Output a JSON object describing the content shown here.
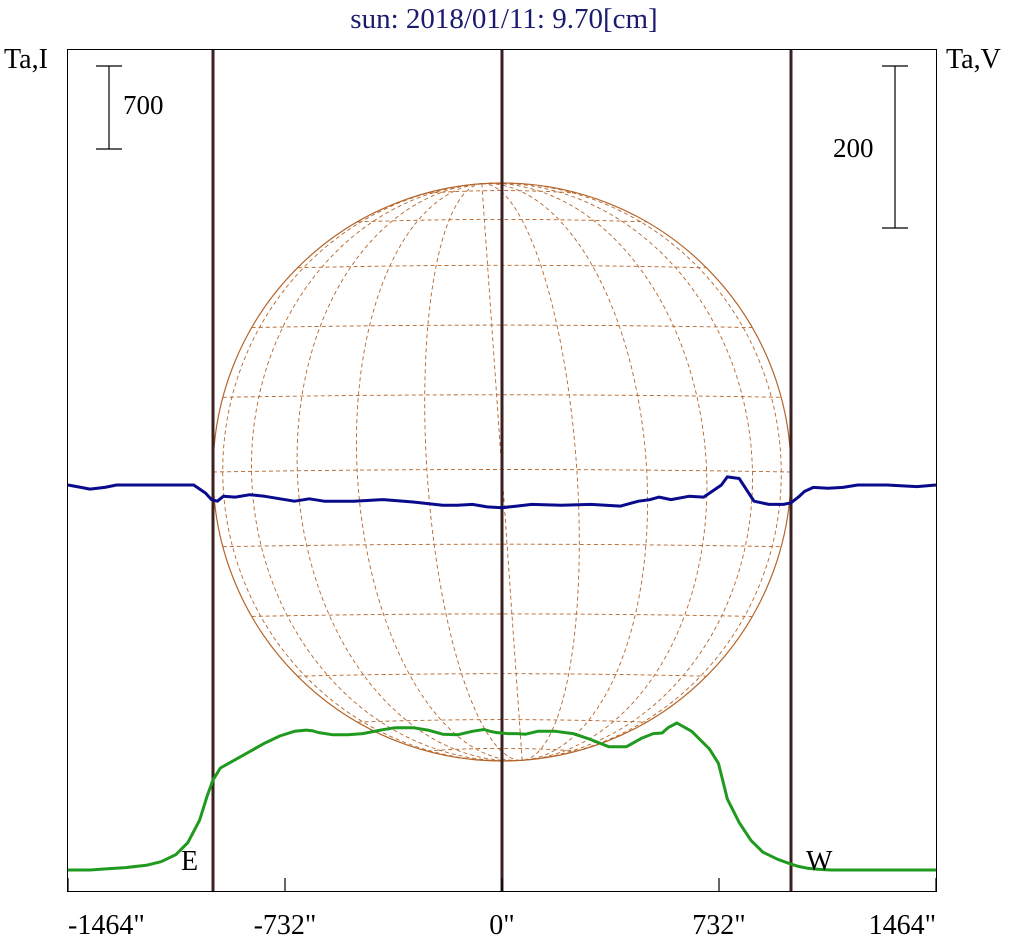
{
  "chart_data": {
    "type": "line",
    "title": "sun: 2018/01/11: 9.70[cm]",
    "ylabel_left": "Ta,I",
    "ylabel_right": "Ta,V",
    "scale_left_label": "700",
    "scale_right_label": "200",
    "limb_left_label": "E",
    "limb_right_label": "W",
    "xlim": [
      -1464,
      1464
    ],
    "x_ticks": [
      {
        "value": -1464,
        "label": "-1464\""
      },
      {
        "value": -732,
        "label": "-732\""
      },
      {
        "value": 0,
        "label": "0\""
      },
      {
        "value": 732,
        "label": "732\""
      },
      {
        "value": 1464,
        "label": "1464\""
      }
    ],
    "solar_limb_arcsec": 975,
    "colors": {
      "title": "#1a1a6e",
      "intensity": "#1f9a1f",
      "polarization": "#0a0a8c",
      "disk": "#b5652a",
      "limb_line": "#3a2020",
      "axis": "#000000"
    },
    "series": [
      {
        "name": "I",
        "x": [
          -1464,
          -1390,
          -1330,
          -1270,
          -1200,
          -1150,
          -1100,
          -1060,
          -1020,
          -995,
          -975,
          -950,
          -900,
          -850,
          -800,
          -750,
          -700,
          -660,
          -640,
          -620,
          -570,
          -520,
          -470,
          -410,
          -360,
          -330,
          -300,
          -250,
          -200,
          -150,
          -100,
          -60,
          -40,
          -20,
          20,
          50,
          80,
          120,
          180,
          240,
          300,
          360,
          420,
          470,
          510,
          540,
          560,
          590,
          640,
          700,
          730,
          740,
          760,
          800,
          840,
          880,
          930,
          975,
          1000,
          1030,
          1070,
          1110,
          1150,
          1210,
          1270,
          1330,
          1390,
          1464
        ],
        "y": [
          0,
          0,
          10,
          20,
          40,
          70,
          130,
          230,
          420,
          620,
          760,
          860,
          930,
          1000,
          1070,
          1130,
          1170,
          1180,
          1175,
          1160,
          1140,
          1140,
          1150,
          1180,
          1200,
          1200,
          1200,
          1180,
          1145,
          1140,
          1170,
          1185,
          1170,
          1160,
          1150,
          1150,
          1145,
          1170,
          1170,
          1150,
          1100,
          1040,
          1040,
          1110,
          1150,
          1155,
          1200,
          1240,
          1170,
          1020,
          900,
          800,
          600,
          400,
          250,
          150,
          90,
          50,
          30,
          15,
          5,
          0,
          0,
          0,
          0,
          0,
          0,
          0
        ]
      },
      {
        "name": "V",
        "x": [
          -1464,
          -1420,
          -1390,
          -1340,
          -1300,
          -1200,
          -1100,
          -1040,
          -1000,
          -980,
          -960,
          -940,
          -900,
          -850,
          -800,
          -700,
          -650,
          -600,
          -500,
          -400,
          -300,
          -200,
          -150,
          -100,
          -50,
          0,
          50,
          100,
          200,
          300,
          400,
          460,
          500,
          530,
          570,
          630,
          680,
          700,
          720,
          740,
          760,
          800,
          850,
          900,
          950,
          975,
          1000,
          1020,
          1050,
          1100,
          1150,
          1200,
          1300,
          1400,
          1464
        ],
        "y": [
          0,
          -3,
          -5,
          -3,
          0,
          0,
          0,
          0,
          -10,
          -18,
          -20,
          -14,
          -15,
          -12,
          -14,
          -20,
          -17,
          -20,
          -20,
          -18,
          -21,
          -25,
          -25,
          -24,
          -27,
          -28,
          -26,
          -24,
          -25,
          -24,
          -26,
          -20,
          -18,
          -15,
          -18,
          -14,
          -15,
          -10,
          -5,
          0,
          10,
          8,
          -20,
          -24,
          -24,
          -22,
          -15,
          -8,
          -3,
          -4,
          -3,
          0,
          0,
          -2,
          0
        ]
      }
    ]
  }
}
